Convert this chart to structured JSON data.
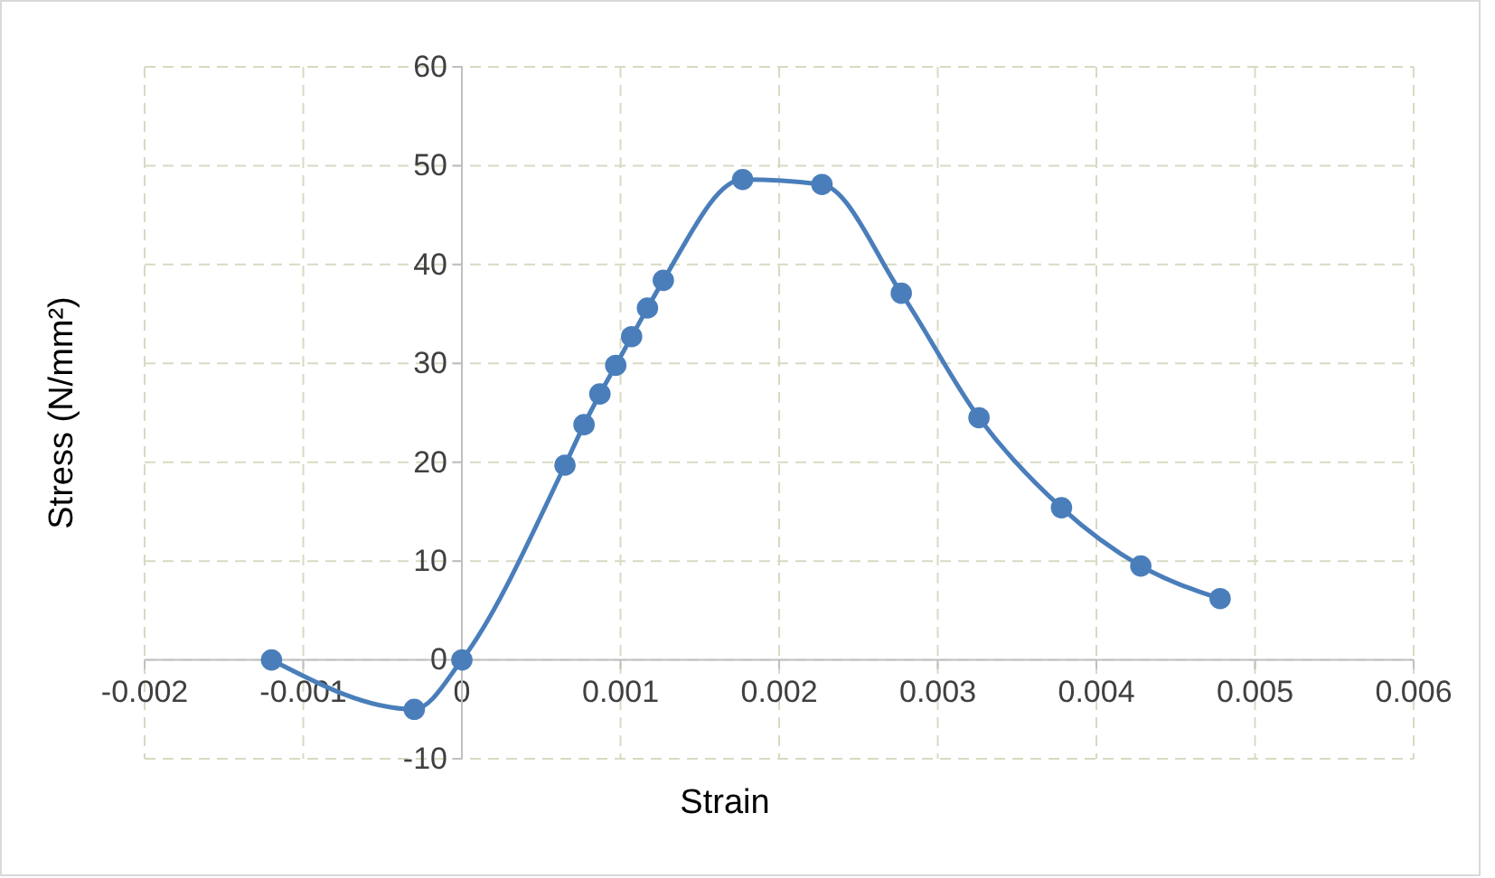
{
  "chart_data": {
    "type": "line",
    "xlabel": "Strain",
    "ylabel": "Stress (N/mm²)",
    "xlim": [
      -0.002,
      0.006
    ],
    "xticks": [
      -0.002,
      -0.001,
      0,
      0.001,
      0.002,
      0.003,
      0.004,
      0.005,
      0.006
    ],
    "ylim": [
      -10,
      60
    ],
    "yticks": [
      -10,
      0,
      10,
      20,
      30,
      40,
      50,
      60
    ],
    "grid": true,
    "marker": "circle",
    "line_style": "solid",
    "series": [
      {
        "color": "#4a7ebb",
        "x": [
          -0.0012,
          -0.0003,
          0,
          0.00065,
          0.00077,
          0.00087,
          0.00097,
          0.00107,
          0.00117,
          0.00127,
          0.00177,
          0.00227,
          0.00277,
          0.00326,
          0.00378,
          0.00428,
          0.00478
        ],
        "values": [
          0,
          -5,
          0,
          19.7,
          23.8,
          26.9,
          29.8,
          32.7,
          35.6,
          38.4,
          48.6,
          48.1,
          37.1,
          24.5,
          15.4,
          9.5,
          6.2
        ]
      }
    ]
  }
}
